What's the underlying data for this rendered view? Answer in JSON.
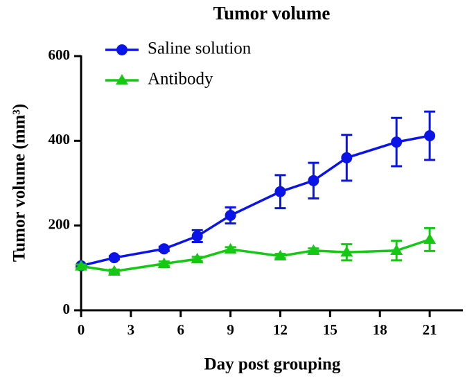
{
  "chart_data": {
    "type": "line",
    "title": "Tumor volume",
    "x_label": "Day post grouping",
    "y_label": "Tumor volume (mm³)",
    "x": [
      0,
      2,
      5,
      7,
      9,
      12,
      14,
      16,
      19,
      21
    ],
    "series": [
      {
        "name": "Saline solution",
        "color": "#0a14e6",
        "marker": "circle",
        "values": [
          105,
          124,
          145,
          175,
          224,
          280,
          306,
          360,
          397,
          412
        ],
        "errors": [
          3,
          4,
          5,
          14,
          19,
          39,
          42,
          54,
          57,
          57
        ]
      },
      {
        "name": "Antibody",
        "color": "#14c814",
        "marker": "triangle",
        "values": [
          104,
          92,
          110,
          121,
          144,
          128,
          141,
          137,
          141,
          167
        ],
        "errors": [
          4,
          4,
          5,
          5,
          5,
          5,
          5,
          19,
          23,
          27
        ]
      }
    ],
    "xlim": [
      0,
      23
    ],
    "xticks": [
      0,
      3,
      6,
      9,
      12,
      15,
      18,
      21
    ],
    "ylim": [
      0,
      600
    ],
    "yticks": [
      0,
      200,
      400,
      600
    ],
    "legend": "upper left"
  }
}
